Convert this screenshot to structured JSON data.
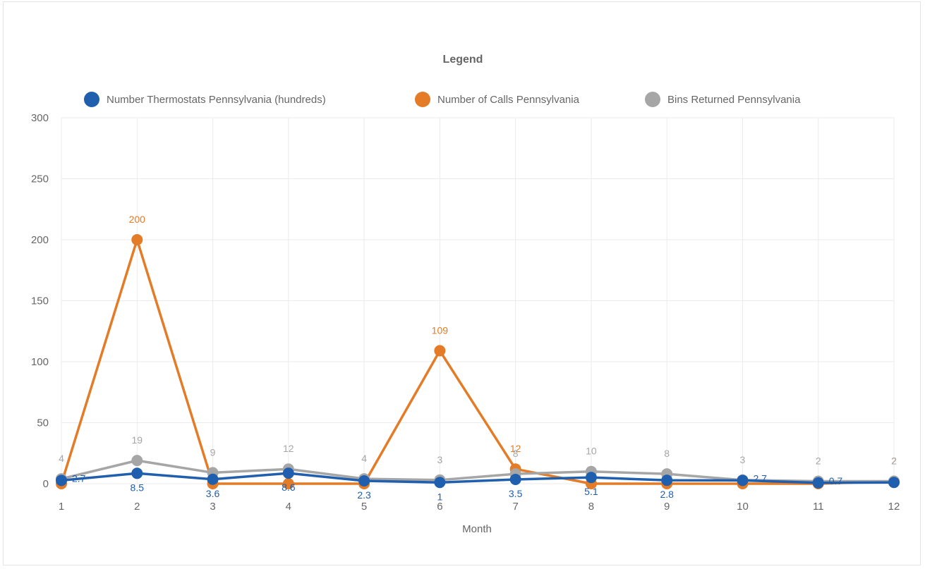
{
  "chart_data": {
    "type": "line",
    "legend_title": "Legend",
    "legend_position": "top",
    "xlabel": "Month",
    "ylabel": "",
    "x": [
      1,
      2,
      3,
      4,
      5,
      6,
      7,
      8,
      9,
      10,
      11,
      12
    ],
    "ylim": [
      0,
      300
    ],
    "yticks": [
      0,
      50,
      100,
      150,
      200,
      250,
      300
    ],
    "grid": true,
    "series": [
      {
        "name": "Number Thermostats Pennsylvania (hundreds)",
        "color": "#1f5fad",
        "values": [
          2.7,
          8.5,
          3.6,
          8.6,
          2.3,
          1,
          3.5,
          5.1,
          2.8,
          2.7,
          0.7,
          1
        ],
        "labels": [
          "2.7",
          "8.5",
          "3.6",
          "8.6",
          "2.3",
          "1",
          "3.5",
          "5.1",
          "2.8",
          "2.7",
          "0.7",
          ""
        ]
      },
      {
        "name": "Number of Calls Pennsylvania",
        "color": "#e37b27",
        "values": [
          0,
          200,
          0,
          0,
          0,
          109,
          12,
          0,
          0,
          0,
          0,
          2
        ],
        "labels": [
          "",
          "200",
          "",
          "",
          "",
          "109",
          "12",
          "",
          "",
          "",
          "",
          "2"
        ]
      },
      {
        "name": "Bins Returned Pennsylvania",
        "color": "#a6a6a6",
        "values": [
          4,
          19,
          9,
          12,
          4,
          3,
          8,
          10,
          8,
          3,
          2,
          2
        ],
        "labels": [
          "4",
          "19",
          "9",
          "12",
          "4",
          "3",
          "8",
          "10",
          "8",
          "3",
          "2",
          "2"
        ]
      }
    ]
  }
}
